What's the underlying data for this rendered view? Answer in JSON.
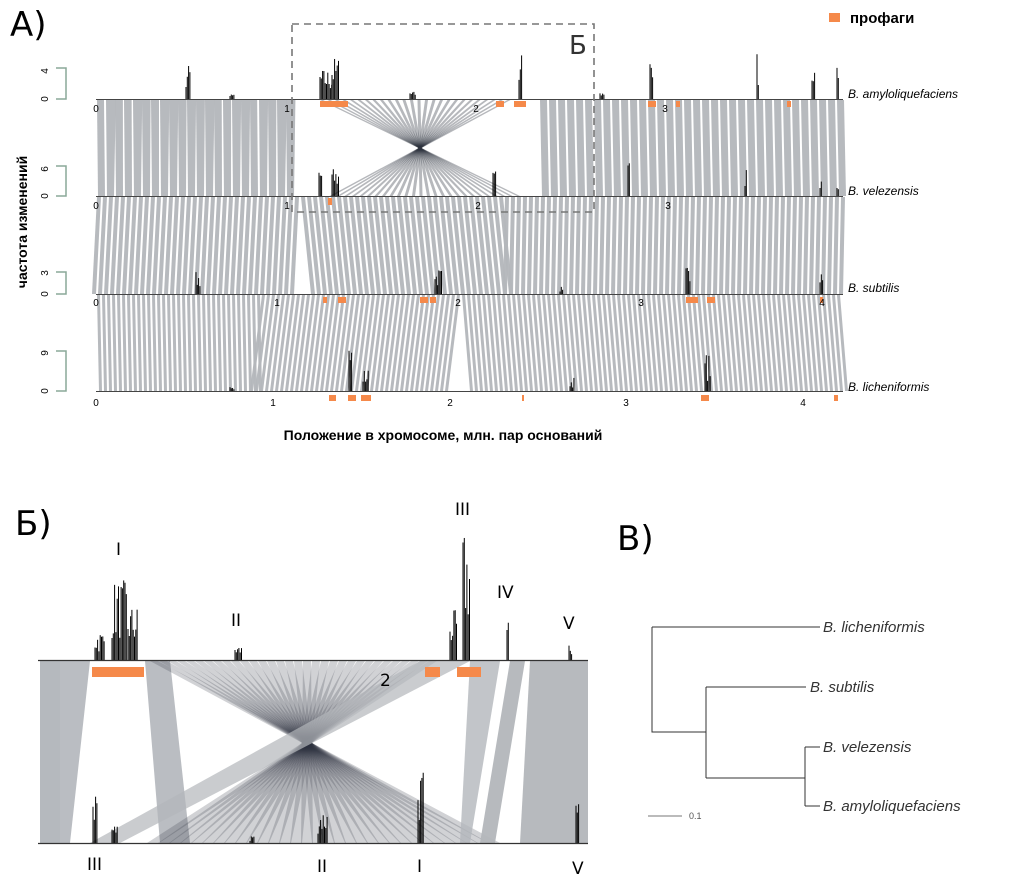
{
  "panels": {
    "a": "А)",
    "b": "Б)",
    "c": "В)"
  },
  "legend": {
    "label": "профаги",
    "color": "#f5894a"
  },
  "panel_a": {
    "ylabel": "частота изменений",
    "xlabel": "Положение в хромосоме, млн. пар оснований",
    "zoom_label": "Б",
    "genomes": [
      {
        "name": "B. amyloliquefaciens",
        "ymax": "4",
        "ymin": "0",
        "ticks": [
          "0",
          "1",
          "2",
          "3"
        ]
      },
      {
        "name": "B. velezensis",
        "ymax": "6",
        "ymin": "0",
        "ticks": [
          "0",
          "1",
          "2",
          "3"
        ]
      },
      {
        "name": "B. subtilis",
        "ymax": "3",
        "ymin": "0",
        "ticks": [
          "0",
          "1",
          "2",
          "3",
          "4"
        ]
      },
      {
        "name": "B. licheniformis",
        "ymax": "9",
        "ymin": "0",
        "ticks": [
          "0",
          "1",
          "2",
          "3",
          "4"
        ]
      }
    ]
  },
  "panel_b": {
    "top_regions": [
      "I",
      "II",
      "III",
      "IV",
      "V"
    ],
    "bottom_regions": [
      "III",
      "II",
      "I",
      "V"
    ],
    "tick": "2"
  },
  "panel_c": {
    "leaves": [
      "B. licheniformis",
      "B. subtilis",
      "B. velezensis",
      "B. amyloliquefaciens"
    ],
    "scale": "0.1"
  },
  "colors": {
    "synteny": "#b3b6bb",
    "inversion": "#2f3440",
    "peaks": "#000000",
    "axis_bracket": "#8aa898"
  }
}
